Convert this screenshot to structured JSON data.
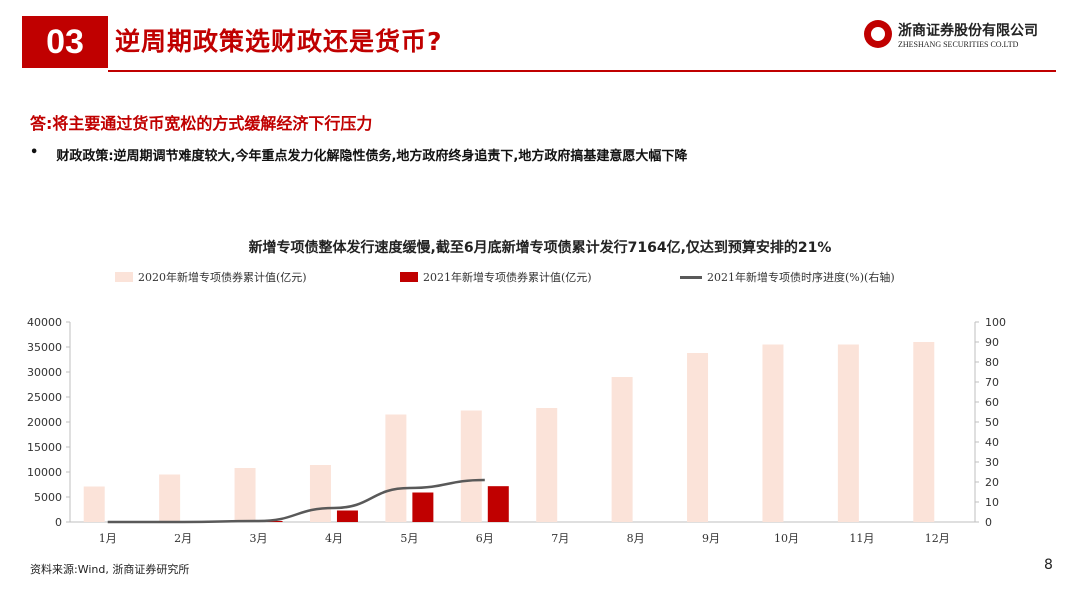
{
  "header": {
    "section_number": "03",
    "title": "逆周期政策选财政还是货币?",
    "logo_cn": "浙商证券股份有限公司",
    "logo_en": "ZHESHANG SECURITIES CO.LTD"
  },
  "content": {
    "answer": "答:将主要通过货币宽松的方式缓解经济下行压力",
    "bullet_marker": "•",
    "bullet_text": "财政政策:逆周期调节难度较大,今年重点发力化解隐性债务,地方政府终身追责下,地方政府搞基建意愿大幅下降"
  },
  "chart_data": {
    "type": "bar",
    "title": "新增专项债整体发行速度缓慢,截至6月底新增专项债累计发行7164亿,仅达到预算安排的21%",
    "categories": [
      "1月",
      "2月",
      "3月",
      "4月",
      "5月",
      "6月",
      "7月",
      "8月",
      "9月",
      "10月",
      "11月",
      "12月"
    ],
    "series": [
      {
        "name": "2020年新增专项债券累计值(亿元)",
        "type": "bar",
        "axis": "left",
        "color": "#fbe3d9",
        "values": [
          7100,
          9500,
          10800,
          11400,
          21500,
          22300,
          22800,
          29000,
          33800,
          35500,
          35500,
          36000
        ]
      },
      {
        "name": "2021年新增专项债券累计值(亿元)",
        "type": "bar",
        "axis": "left",
        "color": "#c00000",
        "values": [
          0,
          0,
          200,
          2300,
          5900,
          7164,
          null,
          null,
          null,
          null,
          null,
          null
        ]
      },
      {
        "name": "2021年新增专项债时序进度(%)(右轴)",
        "type": "line",
        "axis": "right",
        "color": "#595959",
        "values": [
          0,
          0,
          0.5,
          7,
          17,
          21,
          null,
          null,
          null,
          null,
          null,
          null
        ]
      }
    ],
    "ylim_left": [
      0,
      40000
    ],
    "yticks_left": [
      0,
      5000,
      10000,
      15000,
      20000,
      25000,
      30000,
      35000,
      40000
    ],
    "ylim_right": [
      0,
      100
    ],
    "yticks_right": [
      0,
      10,
      20,
      30,
      40,
      50,
      60,
      70,
      80,
      90,
      100
    ],
    "grid": false,
    "legend_position": "top"
  },
  "footer": {
    "source": "资料来源:Wind, 浙商证券研究所",
    "page": "8"
  }
}
